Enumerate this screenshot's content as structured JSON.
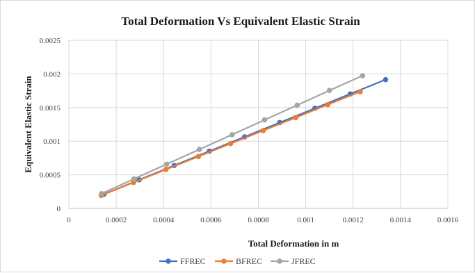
{
  "chart_data": {
    "type": "line",
    "title": "Total Deformation Vs Equivalent Elastic Strain",
    "xlabel": "Total Deformation in m",
    "ylabel": "Equivalent Elastic Strain",
    "xlim": [
      0,
      0.0016
    ],
    "ylim": [
      0,
      0.0025
    ],
    "x_ticks": [
      "0",
      "0.0002",
      "0.0004",
      "0.0006",
      "0.0008",
      "0.001",
      "0.0012",
      "0.0014",
      "0.0016"
    ],
    "y_ticks": [
      "0",
      "0.0005",
      "0.001",
      "0.0015",
      "0.002",
      "0.0025"
    ],
    "grid": true,
    "legend_position": "bottom",
    "series": [
      {
        "name": "FFREC",
        "color": "#4472c4",
        "x": [
          0.000149,
          0.000297,
          0.000445,
          0.000593,
          0.000742,
          0.00089,
          0.001039,
          0.001188,
          0.001337
        ],
        "y": [
          0.000213,
          0.000426,
          0.000638,
          0.000851,
          0.001064,
          0.001276,
          0.001489,
          0.001702,
          0.001915
        ]
      },
      {
        "name": "BFREC",
        "color": "#ed7d31",
        "x": [
          0.000137,
          0.000273,
          0.00041,
          0.000547,
          0.000683,
          0.00082,
          0.000957,
          0.001093,
          0.00123
        ],
        "y": [
          0.000193,
          0.000386,
          0.000579,
          0.000772,
          0.000964,
          0.001157,
          0.00135,
          0.001543,
          0.001736
        ]
      },
      {
        "name": "JFREC",
        "color": "#a5a5a5",
        "x": [
          0.000138,
          0.000275,
          0.000413,
          0.000551,
          0.000689,
          0.000826,
          0.000964,
          0.0011,
          0.00124
        ],
        "y": [
          0.000219,
          0.000439,
          0.000658,
          0.000877,
          0.001096,
          0.001316,
          0.001535,
          0.001754,
          0.001974
        ]
      }
    ]
  }
}
